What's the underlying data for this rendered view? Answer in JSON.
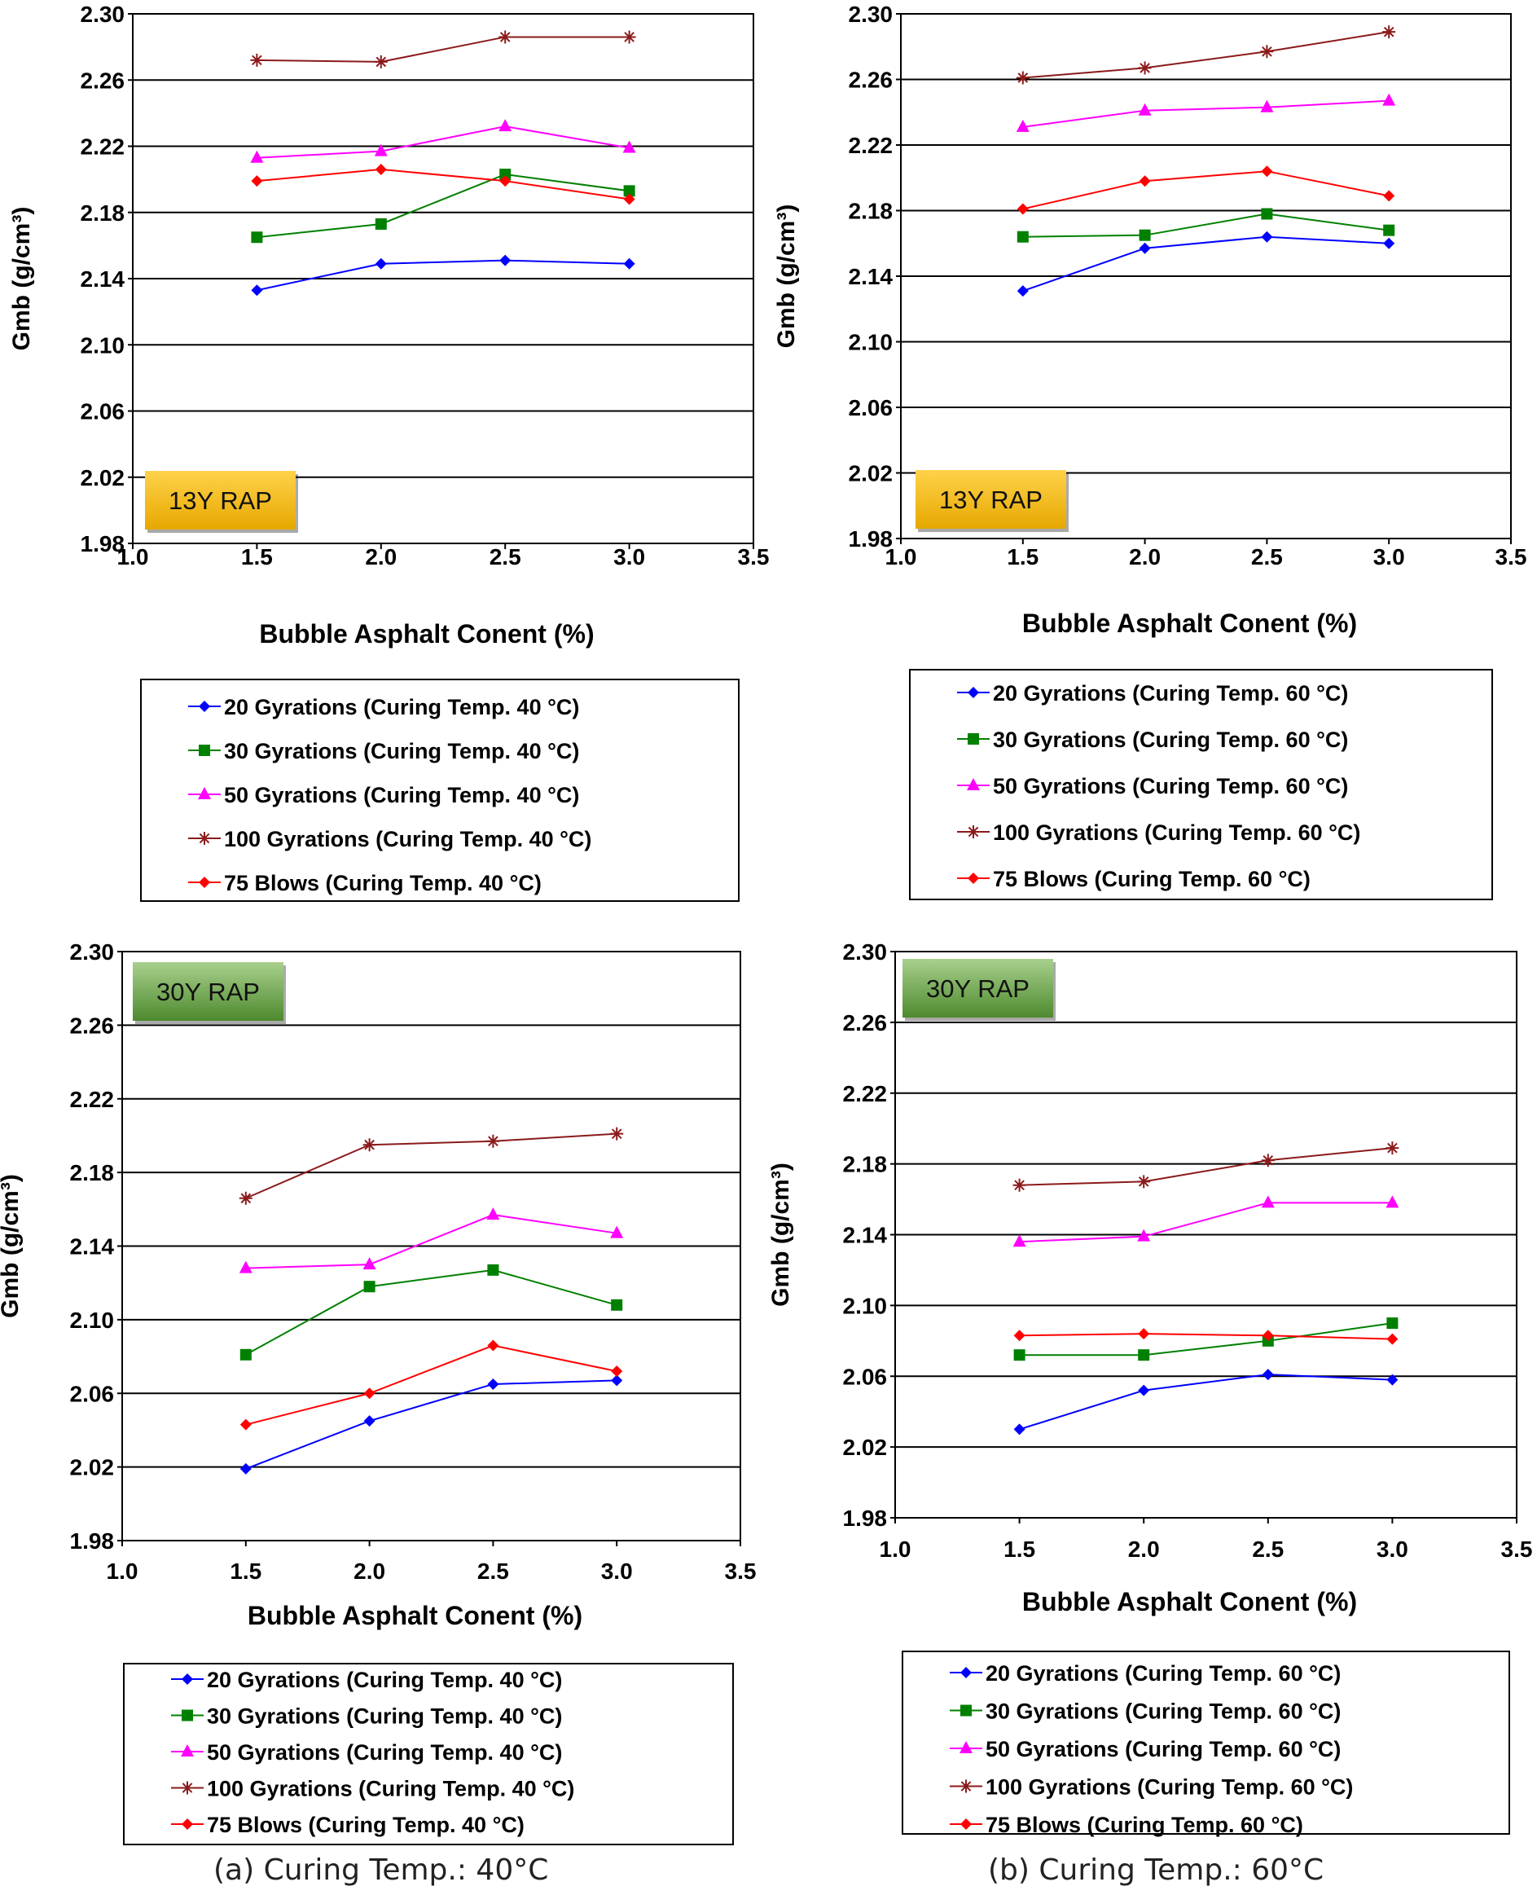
{
  "colors": {
    "s20": "#0000ff",
    "s30": "#008000",
    "s50": "#ff00ff",
    "s100": "#8b1a1a",
    "s75": "#ff0000",
    "badge13_top": "#ffd24a",
    "badge13_bottom": "#e6a800",
    "badge30_top": "#a8d08d",
    "badge30_bottom": "#4e8a2e"
  },
  "captions": {
    "a": "(a) Curing Temp.: 40°C",
    "b": "(b) Curing Temp.: 60°C"
  },
  "chart_data": [
    {
      "type": "line",
      "id": "a13",
      "badge": "13Y RAP",
      "badge_theme": "gold",
      "badge_placement": "bottom-left",
      "xlabel": "Bubble Asphalt Conent  (%)",
      "ylabel": "Gmb (g/cm³)",
      "xlim": [
        1.0,
        3.5
      ],
      "ylim": [
        1.98,
        2.3
      ],
      "x_ticks": [
        "1.0",
        "1.5",
        "2.0",
        "2.5",
        "3.0",
        "3.5"
      ],
      "y_ticks": [
        "1.98",
        "2.02",
        "2.06",
        "2.10",
        "2.14",
        "2.18",
        "2.22",
        "2.26",
        "2.30"
      ],
      "grid": "horizontal",
      "x": [
        1.5,
        2.0,
        2.5,
        3.0
      ],
      "series": [
        {
          "name": "20 Gyrations (Curing Temp. 40 °C)",
          "key": "s20",
          "marker": "diamond",
          "values": [
            2.133,
            2.149,
            2.151,
            2.149
          ]
        },
        {
          "name": "30 Gyrations (Curing Temp. 40 °C)",
          "key": "s30",
          "marker": "square",
          "values": [
            2.165,
            2.173,
            2.203,
            2.193
          ]
        },
        {
          "name": "50 Gyrations (Curing Temp. 40 °C)",
          "key": "s50",
          "marker": "triangle",
          "values": [
            2.213,
            2.217,
            2.232,
            2.219
          ]
        },
        {
          "name": "100 Gyrations (Curing Temp. 40 °C)",
          "key": "s100",
          "marker": "star",
          "values": [
            2.272,
            2.271,
            2.286,
            2.286
          ]
        },
        {
          "name": "75 Blows (Curing Temp. 40 °C)",
          "key": "s75",
          "marker": "diamond",
          "values": [
            2.199,
            2.206,
            2.199,
            2.188
          ]
        }
      ],
      "legend_placement": "below"
    },
    {
      "type": "line",
      "id": "b13",
      "badge": "13Y RAP",
      "badge_theme": "gold",
      "badge_placement": "bottom-left",
      "xlabel": "Bubble Asphalt Conent (%)",
      "ylabel": "Gmb (g/cm³)",
      "xlim": [
        1.0,
        3.5
      ],
      "ylim": [
        1.98,
        2.3
      ],
      "x_ticks": [
        "1.0",
        "1.5",
        "2.0",
        "2.5",
        "3.0",
        "3.5"
      ],
      "y_ticks": [
        "1.98",
        "2.02",
        "2.06",
        "2.10",
        "2.14",
        "2.18",
        "2.22",
        "2.26",
        "2.30"
      ],
      "grid": "horizontal",
      "x": [
        1.5,
        2.0,
        2.5,
        3.0
      ],
      "series": [
        {
          "name": "20 Gyrations (Curing Temp. 60 °C)",
          "key": "s20",
          "marker": "diamond",
          "values": [
            2.131,
            2.157,
            2.164,
            2.16
          ]
        },
        {
          "name": "30 Gyrations (Curing Temp. 60 °C)",
          "key": "s30",
          "marker": "square",
          "values": [
            2.164,
            2.165,
            2.178,
            2.168
          ]
        },
        {
          "name": "50 Gyrations (Curing Temp. 60 °C)",
          "key": "s50",
          "marker": "triangle",
          "values": [
            2.231,
            2.241,
            2.243,
            2.247
          ]
        },
        {
          "name": "100 Gyrations (Curing Temp. 60 °C)",
          "key": "s100",
          "marker": "star",
          "values": [
            2.261,
            2.267,
            2.277,
            2.289
          ]
        },
        {
          "name": "75 Blows (Curing Temp. 60 °C)",
          "key": "s75",
          "marker": "diamond",
          "values": [
            2.181,
            2.198,
            2.204,
            2.189
          ]
        }
      ],
      "legend_placement": "below"
    },
    {
      "type": "line",
      "id": "a30",
      "badge": "30Y RAP",
      "badge_theme": "green",
      "badge_placement": "top-left",
      "xlabel": "Bubble Asphalt Conent (%)",
      "ylabel": "Gmb (g/cm³)",
      "xlim": [
        1.0,
        3.5
      ],
      "ylim": [
        1.98,
        2.3
      ],
      "x_ticks": [
        "1.0",
        "1.5",
        "2.0",
        "2.5",
        "3.0",
        "3.5"
      ],
      "y_ticks": [
        "1.98",
        "2.02",
        "2.06",
        "2.10",
        "2.14",
        "2.18",
        "2.22",
        "2.26",
        "2.30"
      ],
      "grid": "horizontal",
      "x": [
        1.5,
        2.0,
        2.5,
        3.0
      ],
      "series": [
        {
          "name": "20 Gyrations (Curing Temp. 40 °C)",
          "key": "s20",
          "marker": "diamond",
          "values": [
            2.019,
            2.045,
            2.065,
            2.067
          ]
        },
        {
          "name": "30 Gyrations (Curing Temp. 40 °C)",
          "key": "s30",
          "marker": "square",
          "values": [
            2.081,
            2.118,
            2.127,
            2.108
          ]
        },
        {
          "name": "50 Gyrations (Curing Temp. 40 °C)",
          "key": "s50",
          "marker": "triangle",
          "values": [
            2.128,
            2.13,
            2.157,
            2.147
          ]
        },
        {
          "name": "100 Gyrations (Curing Temp. 40 °C)",
          "key": "s100",
          "marker": "star",
          "values": [
            2.166,
            2.195,
            2.197,
            2.201
          ]
        },
        {
          "name": "75 Blows (Curing Temp. 40 °C)",
          "key": "s75",
          "marker": "diamond",
          "values": [
            2.043,
            2.06,
            2.086,
            2.072
          ]
        }
      ],
      "legend_placement": "below"
    },
    {
      "type": "line",
      "id": "b30",
      "badge": "30Y RAP",
      "badge_theme": "green",
      "badge_placement": "top-left",
      "xlabel": "Bubble Asphalt Conent  (%)",
      "ylabel": "Gmb (g/cm³)",
      "xlim": [
        1.0,
        3.5
      ],
      "ylim": [
        1.98,
        2.3
      ],
      "x_ticks": [
        "1.0",
        "1.5",
        "2.0",
        "2.5",
        "3.0",
        "3.5"
      ],
      "y_ticks": [
        "1.98",
        "2.02",
        "2.06",
        "2.10",
        "2.14",
        "2.18",
        "2.22",
        "2.26",
        "2.30"
      ],
      "grid": "horizontal",
      "x": [
        1.5,
        2.0,
        2.5,
        3.0
      ],
      "series": [
        {
          "name": "20 Gyrations (Curing Temp. 60 °C)",
          "key": "s20",
          "marker": "diamond",
          "values": [
            2.03,
            2.052,
            2.061,
            2.058
          ]
        },
        {
          "name": "30 Gyrations (Curing Temp. 60 °C)",
          "key": "s30",
          "marker": "square",
          "values": [
            2.072,
            2.072,
            2.08,
            2.09
          ]
        },
        {
          "name": "50 Gyrations (Curing Temp. 60 °C)",
          "key": "s50",
          "marker": "triangle",
          "values": [
            2.136,
            2.139,
            2.158,
            2.158
          ]
        },
        {
          "name": "100 Gyrations (Curing Temp. 60 °C)",
          "key": "s100",
          "marker": "star",
          "values": [
            2.168,
            2.17,
            2.182,
            2.189
          ]
        },
        {
          "name": "75 Blows (Curing Temp. 60 °C)",
          "key": "s75",
          "marker": "diamond",
          "values": [
            2.083,
            2.084,
            2.083,
            2.081
          ]
        }
      ],
      "legend_placement": "below"
    }
  ]
}
